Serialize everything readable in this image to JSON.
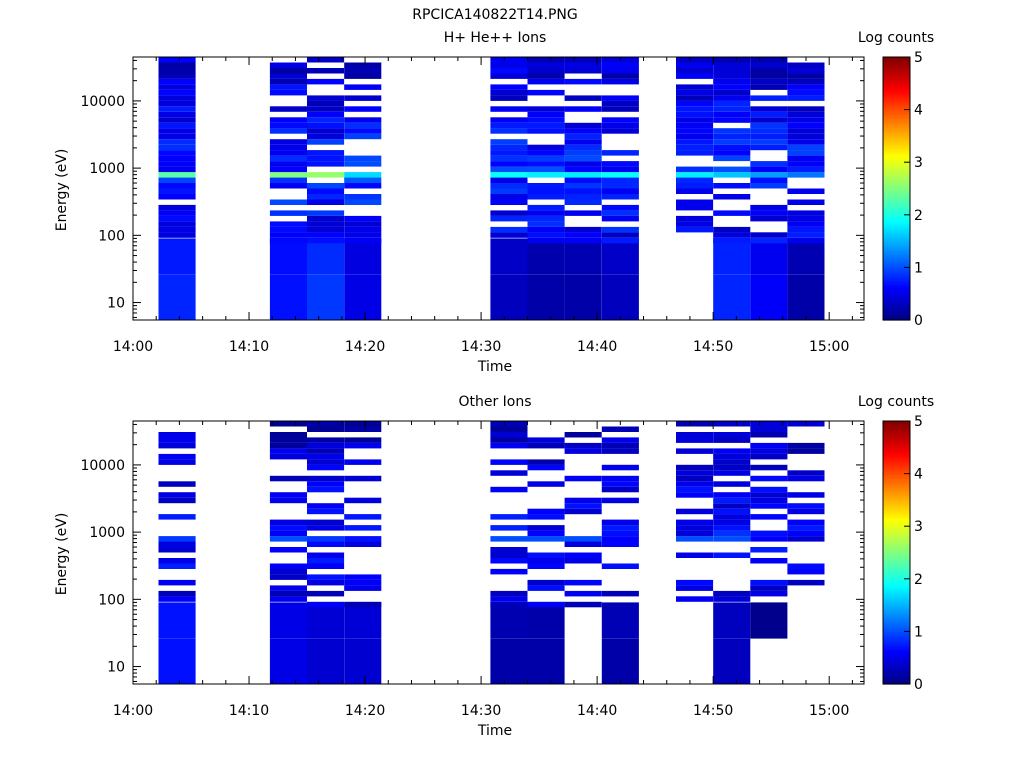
{
  "figure": {
    "title": "RPCICA140822T14.PNG"
  },
  "colorbar": {
    "label": "Log counts",
    "ticks": [
      "0",
      "1",
      "2",
      "3",
      "4",
      "5"
    ],
    "range": [
      0,
      5
    ],
    "colormap": [
      "#00007f",
      "#0000ff",
      "#00ffff",
      "#ffff00",
      "#ff0000",
      "#7f0000"
    ]
  },
  "chart_data": [
    {
      "type": "heatmap",
      "title": "H+ He++ Ions",
      "xlabel": "Time",
      "ylabel": "Energy (eV)",
      "xticks": [
        "14:00",
        "14:10",
        "14:20",
        "14:30",
        "14:40",
        "14:50",
        "15:00"
      ],
      "xlim_minutes": [
        0,
        63
      ],
      "yticks": [
        "10",
        "100",
        "1000",
        "10000"
      ],
      "yscale": "log",
      "ylim": [
        5.5,
        45000
      ],
      "columns_minutes": [
        [
          2.2,
          5.4
        ],
        [
          11.8,
          15.0
        ],
        [
          15.0,
          18.2
        ],
        [
          18.2,
          21.4
        ],
        [
          30.8,
          34.0
        ],
        [
          34.0,
          37.2
        ],
        [
          37.2,
          40.4
        ],
        [
          40.4,
          43.6
        ],
        [
          46.8,
          50.0
        ],
        [
          50.0,
          53.2
        ],
        [
          53.2,
          56.4
        ],
        [
          56.4,
          59.6
        ]
      ],
      "peak_energy_eV": 830,
      "approx_log_counts": {
        "low_energy_blocks": [
          0.8,
          0.7,
          0.9,
          0.5,
          0.3,
          0.2,
          0.2,
          0.3,
          0.0,
          0.8,
          0.6,
          0.2
        ],
        "peak_band": [
          2.3,
          2.5,
          2.6,
          1.7,
          1.9,
          1.8,
          1.8,
          1.9,
          1.8,
          1.6,
          1.4,
          1.2
        ]
      }
    },
    {
      "type": "heatmap",
      "title": "Other Ions",
      "xlabel": "Time",
      "ylabel": "Energy (eV)",
      "xticks": [
        "14:00",
        "14:10",
        "14:20",
        "14:30",
        "14:40",
        "14:50",
        "15:00"
      ],
      "xlim_minutes": [
        0,
        63
      ],
      "yticks": [
        "10",
        "100",
        "1000",
        "10000"
      ],
      "yscale": "log",
      "ylim": [
        5.5,
        45000
      ],
      "columns_minutes": [
        [
          2.2,
          5.4
        ],
        [
          11.8,
          15.0
        ],
        [
          15.0,
          18.2
        ],
        [
          18.2,
          21.4
        ],
        [
          30.8,
          34.0
        ],
        [
          34.0,
          37.2
        ],
        [
          37.2,
          40.4
        ],
        [
          40.4,
          43.6
        ],
        [
          46.8,
          50.0
        ],
        [
          50.0,
          53.2
        ],
        [
          53.2,
          56.4
        ],
        [
          56.4,
          59.6
        ]
      ],
      "peak_energy_eV": 830,
      "approx_log_counts": {
        "low_energy_blocks": [
          0.7,
          0.5,
          0.4,
          0.4,
          0.2,
          0.2,
          0.0,
          0.2,
          0.0,
          0.3,
          0.0,
          0.0
        ],
        "peak_band": [
          0.9,
          1.0,
          0.9,
          0.7,
          1.0,
          1.0,
          1.0,
          0.6,
          1.0,
          1.0,
          0.6,
          0.4
        ]
      }
    }
  ]
}
